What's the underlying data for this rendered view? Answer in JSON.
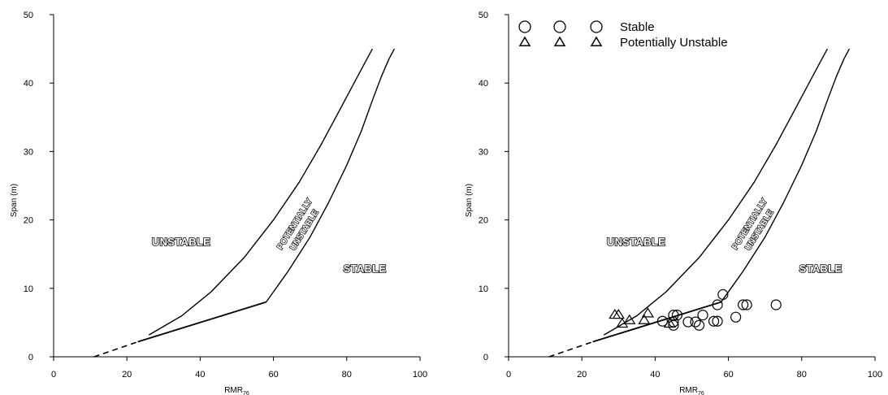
{
  "chart_data": [
    {
      "type": "line",
      "xlabel": "RMR",
      "xlabel_sub": "76",
      "ylabel": "Span (m)",
      "xlim": [
        0,
        100
      ],
      "ylim": [
        0,
        50
      ],
      "xticks": [
        "0",
        "20",
        "40",
        "60",
        "80",
        "100"
      ],
      "yticks": [
        "0",
        "10",
        "20",
        "30",
        "40",
        "50"
      ],
      "grid": false,
      "region_labels": [
        "UNSTABLE",
        "POTENTIALLY",
        "UNSTABLE",
        "STABLE"
      ],
      "curves": [
        {
          "style": "solid",
          "x": [
            26,
            35,
            43,
            52,
            60,
            67,
            73,
            78,
            82,
            85,
            87
          ],
          "y": [
            3.2,
            6,
            9.5,
            14.5,
            20,
            25.5,
            31,
            36,
            40,
            43,
            45
          ]
        },
        {
          "style": "solid",
          "x": [
            58,
            64,
            70,
            75,
            80,
            84,
            87,
            89.5,
            91.5,
            93
          ],
          "y": [
            8,
            12.5,
            17.5,
            22.5,
            28,
            33,
            37.5,
            41,
            43.5,
            45
          ]
        },
        {
          "style": "solid",
          "x": [
            23,
            58
          ],
          "y": [
            2.2,
            8
          ]
        },
        {
          "style": "dashed",
          "x": [
            11,
            23
          ],
          "y": [
            0,
            2.2
          ]
        }
      ]
    },
    {
      "type": "scatter",
      "xlabel": "RMR",
      "xlabel_sub": "76",
      "ylabel": "Span (m)",
      "xlim": [
        0,
        100
      ],
      "ylim": [
        0,
        50
      ],
      "xticks": [
        "0",
        "20",
        "40",
        "60",
        "80",
        "100"
      ],
      "yticks": [
        "0",
        "10",
        "20",
        "30",
        "40",
        "50"
      ],
      "grid": false,
      "legend_position": "top-left",
      "region_labels": [
        "UNSTABLE",
        "POTENTIALLY",
        "UNSTABLE",
        "STABLE"
      ],
      "curves": [
        {
          "style": "solid",
          "x": [
            26,
            35,
            43,
            52,
            60,
            67,
            73,
            78,
            82,
            85,
            87
          ],
          "y": [
            3.2,
            6,
            9.5,
            14.5,
            20,
            25.5,
            31,
            36,
            40,
            43,
            45
          ]
        },
        {
          "style": "solid",
          "x": [
            58,
            64,
            70,
            75,
            80,
            84,
            87,
            89.5,
            91.5,
            93
          ],
          "y": [
            8,
            12.5,
            17.5,
            22.5,
            28,
            33,
            37.5,
            41,
            43.5,
            45
          ]
        },
        {
          "style": "solid",
          "x": [
            23,
            58
          ],
          "y": [
            2.2,
            8
          ]
        },
        {
          "style": "dashed",
          "x": [
            11,
            23
          ],
          "y": [
            0,
            2.2
          ]
        }
      ],
      "series": [
        {
          "name": "Stable",
          "marker": "circle",
          "points": [
            [
              42,
              5.2
            ],
            [
              45,
              6.1
            ],
            [
              45,
              5.1
            ],
            [
              45,
              4.6
            ],
            [
              46,
              6.1
            ],
            [
              49,
              5.1
            ],
            [
              51,
              5.1
            ],
            [
              52,
              4.6
            ],
            [
              53,
              6.1
            ],
            [
              56,
              5.2
            ],
            [
              57,
              5.2
            ],
            [
              57,
              7.6
            ],
            [
              58.5,
              9.1
            ],
            [
              62,
              5.8
            ],
            [
              64,
              7.6
            ],
            [
              65,
              7.6
            ],
            [
              73,
              7.6
            ]
          ]
        },
        {
          "name": "Potentially Unstable",
          "marker": "triangle",
          "points": [
            [
              29,
              6.1
            ],
            [
              30,
              6.1
            ],
            [
              31,
              4.8
            ],
            [
              33,
              5.3
            ],
            [
              37,
              5.3
            ],
            [
              38,
              6.3
            ],
            [
              44,
              4.8
            ]
          ]
        }
      ]
    }
  ]
}
